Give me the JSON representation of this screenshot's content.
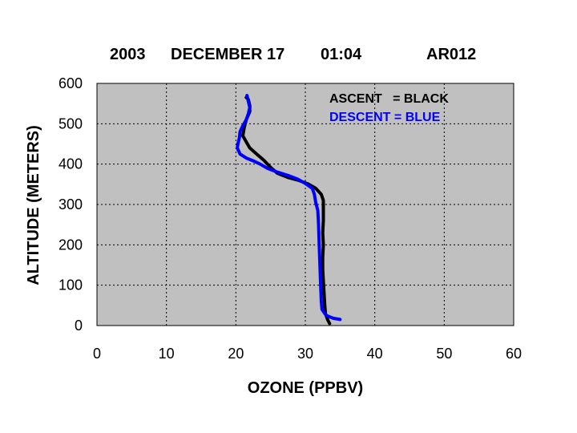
{
  "chart_data": {
    "type": "line",
    "title": {
      "year": "2003",
      "date": "DECEMBER 17",
      "time": "01:04",
      "id": "AR012"
    },
    "xlabel": "OZONE (PPBV)",
    "ylabel": "ALTITUDE (METERS)",
    "xlim": [
      0,
      60
    ],
    "ylim": [
      0,
      600
    ],
    "xticks": [
      0,
      10,
      20,
      30,
      40,
      50,
      60
    ],
    "yticks": [
      0,
      100,
      200,
      300,
      400,
      500,
      600
    ],
    "grid": true,
    "plot_background": "#c0c0c0",
    "legend_position": "top-right",
    "series": [
      {
        "name": "ASCENT   = BLACK",
        "color": "#000000",
        "points": [
          [
            33.5,
            5
          ],
          [
            33.2,
            15
          ],
          [
            32.9,
            30
          ],
          [
            32.8,
            50
          ],
          [
            32.7,
            80
          ],
          [
            32.6,
            110
          ],
          [
            32.5,
            140
          ],
          [
            32.5,
            170
          ],
          [
            32.6,
            200
          ],
          [
            32.5,
            230
          ],
          [
            32.6,
            260
          ],
          [
            32.6,
            290
          ],
          [
            32.6,
            310
          ],
          [
            32.3,
            325
          ],
          [
            31.5,
            340
          ],
          [
            30.5,
            350
          ],
          [
            29.0,
            360
          ],
          [
            27.5,
            367
          ],
          [
            26.0,
            377
          ],
          [
            25.0,
            392
          ],
          [
            24.0,
            410
          ],
          [
            23.0,
            425
          ],
          [
            22.0,
            440
          ],
          [
            21.5,
            455
          ],
          [
            21.0,
            470
          ],
          [
            21.2,
            490
          ],
          [
            21.5,
            510
          ],
          [
            22.0,
            530
          ],
          [
            22.0,
            545
          ],
          [
            21.8,
            560
          ],
          [
            21.5,
            565
          ]
        ]
      },
      {
        "name": "DESCENT = BLUE",
        "color": "#0000ff",
        "points": [
          [
            21.6,
            570
          ],
          [
            21.8,
            555
          ],
          [
            22.0,
            540
          ],
          [
            21.8,
            525
          ],
          [
            21.5,
            510
          ],
          [
            21.0,
            495
          ],
          [
            20.6,
            480
          ],
          [
            20.5,
            465
          ],
          [
            20.3,
            450
          ],
          [
            20.2,
            440
          ],
          [
            20.6,
            425
          ],
          [
            21.5,
            415
          ],
          [
            22.5,
            408
          ],
          [
            23.5,
            400
          ],
          [
            24.5,
            390
          ],
          [
            26.0,
            380
          ],
          [
            27.5,
            372
          ],
          [
            29.0,
            362
          ],
          [
            30.0,
            352
          ],
          [
            31.0,
            340
          ],
          [
            31.3,
            325
          ],
          [
            31.5,
            305
          ],
          [
            31.8,
            285
          ],
          [
            31.9,
            250
          ],
          [
            32.0,
            200
          ],
          [
            32.1,
            150
          ],
          [
            32.2,
            100
          ],
          [
            32.3,
            60
          ],
          [
            32.4,
            40
          ],
          [
            33.0,
            25
          ],
          [
            34.0,
            18
          ],
          [
            35.0,
            15
          ]
        ]
      }
    ]
  }
}
